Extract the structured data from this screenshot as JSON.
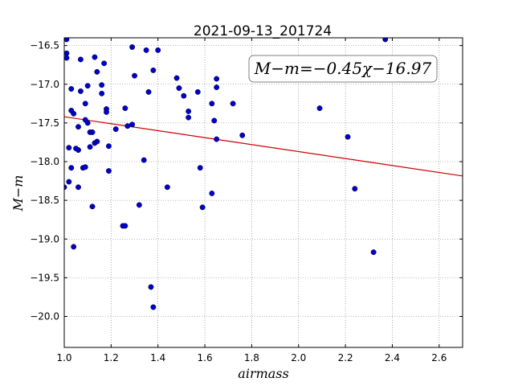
{
  "chart_data": {
    "type": "scatter",
    "title": "2021-09-13_201724",
    "xlabel": "airmass",
    "ylabel": "M−m",
    "xlim": [
      1.0,
      2.7
    ],
    "ylim": [
      -20.4,
      -16.4
    ],
    "y_inverted": true,
    "grid": true,
    "xticks": [
      1.0,
      1.2,
      1.4,
      1.6,
      1.8,
      2.0,
      2.2,
      2.4,
      2.6
    ],
    "xtick_labels": [
      "1.0",
      "1.2",
      "1.4",
      "1.6",
      "1.8",
      "2.0",
      "2.2",
      "2.4",
      "2.6"
    ],
    "yticks": [
      -16.5,
      -17.0,
      -17.5,
      -18.0,
      -18.5,
      -19.0,
      -19.5,
      -20.0
    ],
    "ytick_labels": [
      "−16.5",
      "−17.0",
      "−17.5",
      "−18.0",
      "−18.5",
      "−19.0",
      "−19.5",
      "−20.0"
    ],
    "annotation": "M−m=−0.45χ−16.97",
    "colors": {
      "points": "#0000cc",
      "fit_line": "#cc0000"
    },
    "fit_line": {
      "slope": -0.45,
      "intercept": -16.97
    },
    "series": [
      {
        "x": [
          1.0,
          1.01,
          1.01,
          1.01,
          1.02,
          1.02,
          1.03,
          1.03,
          1.03,
          1.04,
          1.04,
          1.05,
          1.06,
          1.06,
          1.06,
          1.07,
          1.07,
          1.08,
          1.09,
          1.09,
          1.09,
          1.1,
          1.1,
          1.11,
          1.11,
          1.12,
          1.12,
          1.13,
          1.13,
          1.14,
          1.14,
          1.16,
          1.16,
          1.17,
          1.18,
          1.18,
          1.19,
          1.19,
          1.22,
          1.25,
          1.26,
          1.26,
          1.27,
          1.29,
          1.29,
          1.3,
          1.32,
          1.34,
          1.35,
          1.36,
          1.37,
          1.38,
          1.38,
          1.4,
          1.44,
          1.48,
          1.49,
          1.51,
          1.53,
          1.53,
          1.57,
          1.58,
          1.59,
          1.63,
          1.63,
          1.64,
          1.65,
          1.65,
          1.65,
          1.72,
          1.76,
          2.09,
          2.21,
          2.24,
          2.32,
          2.37
        ],
        "y": [
          -18.33,
          -16.42,
          -16.6,
          -16.66,
          -17.82,
          -18.26,
          -17.34,
          -17.06,
          -18.08,
          -17.38,
          -19.1,
          -17.83,
          -17.55,
          -18.33,
          -17.85,
          -17.09,
          -16.68,
          -18.08,
          -18.07,
          -17.25,
          -17.46,
          -17.5,
          -17.02,
          -17.81,
          -17.62,
          -17.62,
          -18.58,
          -16.65,
          -17.76,
          -16.84,
          -17.74,
          -17.01,
          -17.12,
          -16.73,
          -17.32,
          -17.36,
          -17.8,
          -18.12,
          -17.58,
          -18.83,
          -18.83,
          -17.31,
          -17.54,
          -16.52,
          -17.52,
          -16.89,
          -18.56,
          -17.98,
          -16.56,
          -17.1,
          -19.62,
          -19.88,
          -16.82,
          -16.56,
          -18.33,
          -16.92,
          -17.05,
          -17.15,
          -17.35,
          -17.43,
          -17.1,
          -18.08,
          -18.59,
          -17.25,
          -18.41,
          -17.47,
          -16.93,
          -17.04,
          -17.71,
          -17.25,
          -17.66,
          -17.31,
          -17.68,
          -18.35,
          -19.17,
          -16.42
        ]
      }
    ]
  }
}
